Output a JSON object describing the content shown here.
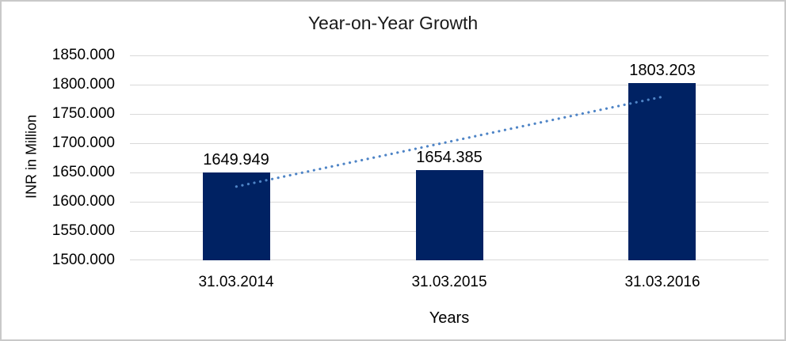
{
  "chart_data": {
    "type": "bar",
    "title": "Year-on-Year Growth",
    "xlabel": "Years",
    "ylabel": "INR in Million",
    "categories": [
      "31.03.2014",
      "31.03.2015",
      "31.03.2016"
    ],
    "values": [
      1649.949,
      1654.385,
      1803.203
    ],
    "value_labels": [
      "1649.949",
      "1654.385",
      "1803.203"
    ],
    "ylim": [
      1500,
      1850
    ],
    "yticks": [
      1850,
      1800,
      1750,
      1700,
      1650,
      1600,
      1550,
      1500
    ],
    "ytick_labels": [
      "1850.000",
      "1800.000",
      "1750.000",
      "1700.000",
      "1650.000",
      "1600.000",
      "1550.000",
      "1500.000"
    ],
    "grid": true,
    "legend": "none",
    "trendline": "linear-dotted",
    "colors": {
      "bar": "#002263",
      "trendline": "#4e84c6",
      "gridline": "#d9d9d9",
      "text": "#000000",
      "title_text": "#1a1a1a",
      "frame_border": "#c9c9c9",
      "background": "#ffffff"
    }
  }
}
